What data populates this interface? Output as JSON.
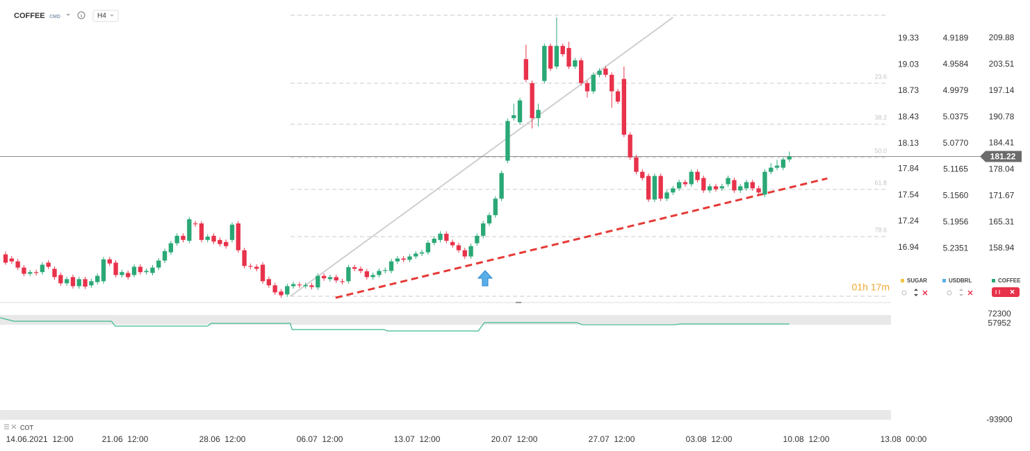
{
  "header": {
    "symbol": "COFFEE",
    "market": "CMD",
    "interval": "H4"
  },
  "chart_data": {
    "type": "candlestick",
    "up_color": "#2aa876",
    "down_color": "#e8324b",
    "xlim": [
      -0.91,
      146.65
    ],
    "xticks": [
      {
        "value": 5.56,
        "label": "14.06.2021  12:00"
      },
      {
        "value": 19.52,
        "label": "21.06  12:00"
      },
      {
        "value": 35.41,
        "label": "28.06  12:00"
      },
      {
        "value": 51.31,
        "label": "06.07  12:00"
      },
      {
        "value": 67.2,
        "label": "13.07  12:00"
      },
      {
        "value": 83.09,
        "label": "20.07  12:00"
      },
      {
        "value": 98.98,
        "label": "27.07  12:00"
      },
      {
        "value": 114.87,
        "label": "03.08  12:00"
      },
      {
        "value": 130.76,
        "label": "10.08  12:00"
      },
      {
        "value": 146.65,
        "label": "13.08  00:00"
      }
    ],
    "ylim": [
      146.85,
      216.6
    ],
    "yticks": [
      209.88,
      203.51,
      197.14,
      190.78,
      184.41,
      178.04,
      171.67,
      165.31,
      158.94
    ],
    "last_price": 181.22,
    "sugar_axis": {
      "ylim": [
        16.36,
        19.65
      ],
      "yticks": [
        19.33,
        19.03,
        18.73,
        18.43,
        18.13,
        17.84,
        17.54,
        17.24,
        16.94
      ]
    },
    "usdbrl_axis": {
      "ylim": [
        5.31,
        4.877
      ],
      "yticks": [
        4.9189,
        4.9584,
        4.9979,
        5.0375,
        {
          "value": 5.077,
          "label": "5.0770"
        },
        5.1165,
        {
          "value": 5.156,
          "label": "5.1560"
        },
        5.1956,
        5.2351
      ]
    },
    "fib_levels": [
      {
        "value": 215.42,
        "label": null
      },
      {
        "value": 198.95,
        "label": "23.6"
      },
      {
        "value": 189.04,
        "label": "38.2"
      },
      {
        "value": 180.97,
        "label": "50.0"
      },
      {
        "value": 173.24,
        "label": "61.8"
      },
      {
        "value": 161.81,
        "label": "78.6"
      },
      {
        "value": 147.35,
        "label": null
      }
    ],
    "trendlines": [
      {
        "x": [
          46.5,
          109.0
        ],
        "y": [
          147.35,
          214.9
        ],
        "color": "#cfcfcf",
        "dashed": false
      },
      {
        "x": [
          53.9,
          134.2
        ],
        "y": [
          147.0,
          175.9
        ],
        "color": "#e53935",
        "dashed": true
      }
    ],
    "ohlc": [
      [
        157.5,
        158.2,
        155.0,
        155.5
      ],
      [
        156.5,
        157.1,
        155.2,
        155.8
      ],
      [
        155.8,
        156.4,
        153.7,
        154.3
      ],
      [
        154.3,
        154.9,
        152.2,
        152.8
      ],
      [
        152.8,
        153.8,
        152.2,
        153.2
      ],
      [
        153.2,
        153.8,
        152.4,
        153.0
      ],
      [
        153.2,
        155.6,
        152.6,
        155.0
      ],
      [
        155.5,
        156.1,
        153.9,
        154.5
      ],
      [
        154.0,
        154.6,
        151.4,
        152.0
      ],
      [
        152.5,
        153.1,
        149.9,
        150.5
      ],
      [
        150.5,
        152.1,
        149.9,
        151.5
      ],
      [
        152.0,
        152.6,
        149.2,
        149.8
      ],
      [
        149.8,
        152.1,
        149.2,
        151.5
      ],
      [
        151.5,
        152.1,
        149.1,
        149.7
      ],
      [
        150.0,
        151.6,
        149.4,
        151.0
      ],
      [
        150.8,
        152.9,
        150.2,
        152.3
      ],
      [
        151.0,
        156.9,
        150.4,
        156.3
      ],
      [
        156.3,
        156.9,
        154.7,
        155.3
      ],
      [
        155.5,
        156.1,
        151.9,
        152.5
      ],
      [
        152.5,
        153.8,
        151.9,
        153.2
      ],
      [
        153.0,
        153.6,
        151.4,
        152.0
      ],
      [
        152.5,
        155.1,
        151.9,
        154.5
      ],
      [
        154.5,
        155.1,
        152.6,
        153.2
      ],
      [
        153.2,
        154.1,
        152.6,
        153.5
      ],
      [
        153.0,
        154.9,
        152.4,
        154.3
      ],
      [
        154.3,
        156.6,
        153.7,
        156.0
      ],
      [
        156.0,
        158.9,
        155.4,
        158.3
      ],
      [
        158.0,
        160.8,
        157.4,
        160.2
      ],
      [
        160.2,
        162.6,
        159.6,
        162.0
      ],
      [
        162.0,
        162.6,
        160.4,
        161.0
      ],
      [
        160.8,
        166.6,
        160.2,
        166.0
      ],
      [
        165.0,
        165.6,
        164.2,
        164.8
      ],
      [
        165.0,
        165.6,
        160.4,
        161.0
      ],
      [
        161.0,
        162.4,
        160.4,
        161.8
      ],
      [
        162.0,
        162.6,
        160.0,
        160.6
      ],
      [
        161.0,
        161.6,
        159.4,
        160.0
      ],
      [
        160.5,
        161.1,
        158.9,
        159.5
      ],
      [
        161.0,
        165.3,
        160.4,
        164.7
      ],
      [
        165.0,
        165.6,
        157.9,
        158.5
      ],
      [
        158.5,
        159.1,
        154.1,
        154.7
      ],
      [
        154.7,
        155.3,
        153.9,
        154.5
      ],
      [
        154.5,
        155.1,
        153.4,
        154.0
      ],
      [
        155.0,
        155.6,
        150.4,
        151.0
      ],
      [
        151.5,
        152.1,
        149.4,
        150.0
      ],
      [
        150.0,
        150.6,
        147.7,
        148.3
      ],
      [
        148.5,
        149.1,
        147.0,
        147.6
      ],
      [
        147.8,
        150.4,
        147.2,
        149.8
      ],
      [
        149.8,
        150.9,
        149.2,
        150.3
      ],
      [
        150.2,
        150.8,
        149.4,
        150.0
      ],
      [
        149.8,
        150.7,
        149.2,
        150.1
      ],
      [
        150.0,
        150.6,
        149.0,
        149.6
      ],
      [
        149.5,
        152.9,
        148.9,
        152.3
      ],
      [
        152.3,
        152.9,
        151.1,
        151.7
      ],
      [
        151.5,
        152.6,
        150.9,
        152.0
      ],
      [
        152.0,
        152.6,
        150.6,
        151.2
      ],
      [
        151.0,
        151.6,
        150.2,
        150.8
      ],
      [
        151.0,
        155.0,
        150.4,
        154.4
      ],
      [
        154.4,
        155.0,
        153.4,
        154.0
      ],
      [
        154.0,
        154.6,
        152.9,
        153.5
      ],
      [
        153.4,
        154.0,
        151.4,
        152.0
      ],
      [
        152.0,
        153.1,
        151.4,
        152.5
      ],
      [
        152.5,
        154.1,
        151.9,
        153.5
      ],
      [
        153.5,
        154.3,
        152.9,
        153.7
      ],
      [
        153.5,
        156.4,
        152.9,
        155.8
      ],
      [
        155.8,
        157.1,
        155.2,
        156.5
      ],
      [
        156.5,
        157.1,
        155.6,
        156.2
      ],
      [
        156.2,
        157.6,
        155.6,
        157.0
      ],
      [
        157.0,
        158.3,
        156.4,
        157.7
      ],
      [
        157.7,
        158.6,
        157.1,
        158.0
      ],
      [
        158.0,
        160.9,
        157.4,
        160.3
      ],
      [
        160.3,
        161.9,
        159.7,
        161.3
      ],
      [
        161.0,
        163.1,
        160.4,
        162.5
      ],
      [
        162.5,
        163.1,
        160.2,
        160.8
      ],
      [
        160.5,
        161.1,
        159.1,
        159.7
      ],
      [
        159.7,
        160.3,
        157.9,
        158.5
      ],
      [
        158.5,
        159.1,
        156.4,
        157.0
      ],
      [
        157.0,
        160.1,
        156.4,
        159.5
      ],
      [
        160.2,
        162.6,
        159.6,
        162.0
      ],
      [
        162.0,
        165.6,
        161.4,
        165.0
      ],
      [
        165.0,
        167.6,
        164.4,
        167.0
      ],
      [
        167.0,
        171.6,
        166.4,
        171.0
      ],
      [
        171.0,
        177.8,
        170.4,
        177.2
      ],
      [
        180.2,
        190.4,
        179.6,
        189.8
      ],
      [
        190.5,
        194.0,
        189.9,
        191.2
      ],
      [
        189.5,
        195.4,
        188.9,
        194.8
      ],
      [
        204.8,
        208.3,
        199.2,
        199.8
      ],
      [
        199.0,
        199.6,
        188.0,
        190.5
      ],
      [
        190.5,
        194.0,
        188.5,
        192.5
      ],
      [
        199.5,
        208.6,
        198.9,
        208.0
      ],
      [
        208.0,
        208.6,
        201.9,
        202.5
      ],
      [
        203.0,
        214.9,
        202.4,
        208.0
      ],
      [
        208.0,
        208.6,
        205.4,
        206.0
      ],
      [
        207.5,
        209.0,
        202.4,
        203.0
      ],
      [
        203.0,
        205.1,
        202.4,
        204.5
      ],
      [
        204.5,
        205.1,
        198.4,
        199.0
      ],
      [
        199.0,
        199.6,
        195.5,
        197.0
      ],
      [
        197.0,
        201.6,
        196.4,
        201.0
      ],
      [
        201.0,
        202.6,
        200.4,
        202.0
      ],
      [
        202.5,
        203.1,
        200.4,
        201.0
      ],
      [
        201.0,
        201.6,
        193.0,
        197.0
      ],
      [
        197.0,
        197.6,
        193.9,
        194.5
      ],
      [
        200.0,
        203.0,
        185.9,
        186.5
      ],
      [
        186.5,
        187.1,
        180.4,
        181.0
      ],
      [
        181.0,
        181.6,
        176.9,
        177.5
      ],
      [
        177.5,
        178.1,
        175.4,
        176.0
      ],
      [
        176.5,
        177.1,
        170.2,
        170.8
      ],
      [
        170.8,
        177.1,
        170.2,
        176.5
      ],
      [
        176.5,
        177.1,
        170.4,
        171.0
      ],
      [
        171.0,
        173.1,
        170.4,
        172.5
      ],
      [
        172.5,
        174.1,
        171.9,
        173.5
      ],
      [
        173.5,
        175.6,
        172.9,
        175.0
      ],
      [
        175.0,
        175.6,
        173.9,
        174.5
      ],
      [
        174.5,
        178.1,
        173.9,
        177.5
      ],
      [
        177.5,
        178.1,
        174.9,
        175.5
      ],
      [
        176.0,
        176.6,
        172.4,
        173.0
      ],
      [
        173.0,
        174.6,
        172.4,
        174.0
      ],
      [
        174.0,
        174.6,
        172.7,
        173.3
      ],
      [
        173.5,
        174.6,
        172.9,
        174.0
      ],
      [
        174.5,
        176.6,
        173.9,
        176.0
      ],
      [
        175.5,
        176.1,
        172.4,
        173.0
      ],
      [
        173.0,
        174.6,
        172.4,
        174.0
      ],
      [
        173.5,
        175.6,
        172.9,
        175.0
      ],
      [
        175.0,
        175.6,
        172.9,
        173.5
      ],
      [
        173.5,
        174.1,
        171.9,
        172.5
      ],
      [
        172.0,
        178.1,
        171.4,
        177.5
      ],
      [
        177.5,
        179.6,
        176.9,
        178.5
      ],
      [
        178.5,
        180.4,
        177.9,
        179.0
      ],
      [
        178.5,
        181.1,
        177.9,
        180.5
      ],
      [
        180.5,
        182.4,
        179.9,
        181.2
      ]
    ],
    "instruments": [
      {
        "name": "SUGAR",
        "color": "#f3c443"
      },
      {
        "name": "USDBRL",
        "color": "#5aaee8"
      },
      {
        "name": "COFFEE",
        "color": "#2aa876"
      }
    ],
    "timer": "01h 17m",
    "indicator": {
      "name": "COT",
      "color": "#3cb891",
      "x": [
        -0.9,
        1.4,
        17.3,
        17.9,
        33.0,
        33.6,
        46.5,
        46.8,
        61.8,
        62.4,
        77.2,
        78.2,
        93.3,
        94.2,
        109.2,
        110.1,
        128
      ],
      "values": [
        66850,
        61400,
        61400,
        53800,
        53800,
        58100,
        58100,
        48300,
        48300,
        46100,
        46100,
        59200,
        59200,
        55900,
        55900,
        57000,
        57000
      ],
      "ylim": [
        -96650,
        86470
      ],
      "yticks": [
        72300,
        57952,
        -93900
      ]
    }
  }
}
